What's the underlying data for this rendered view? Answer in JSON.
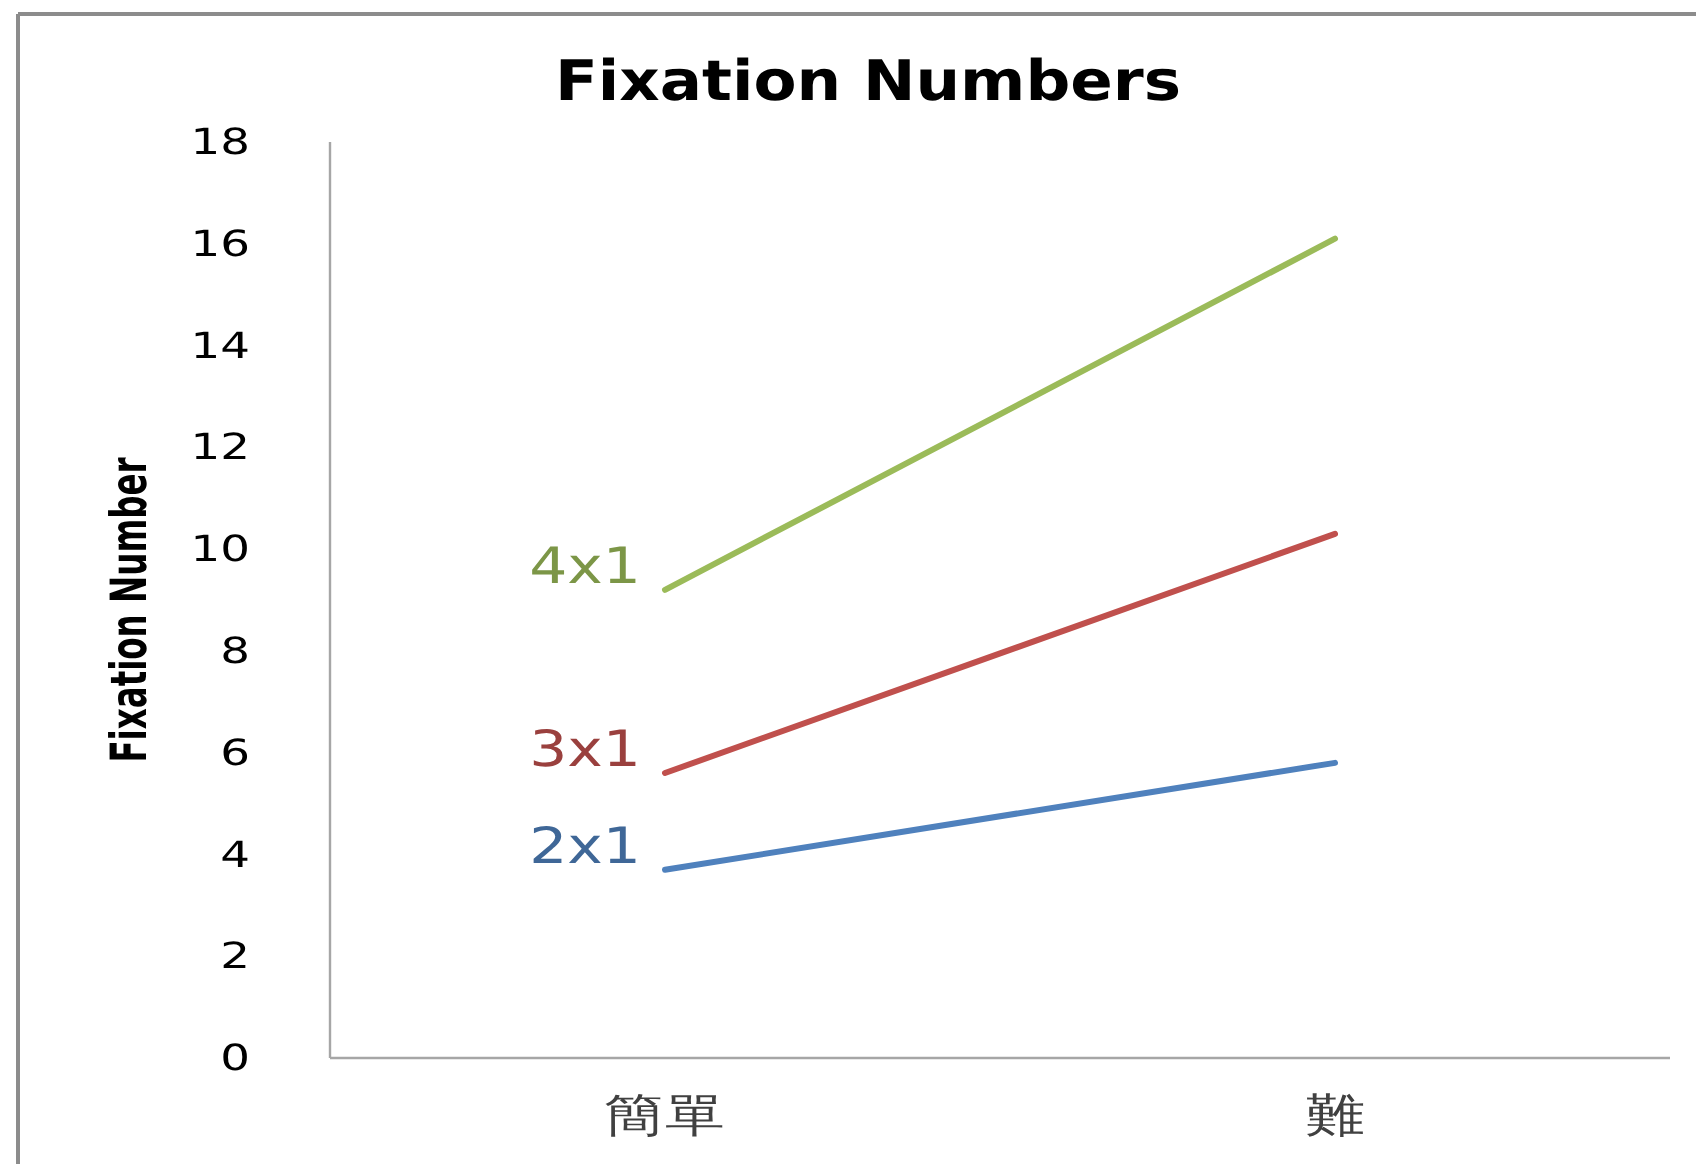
{
  "chart_data": {
    "type": "line",
    "title": "Fixation Numbers",
    "ylabel": "Fixation Number",
    "categories": [
      "簡單",
      "難"
    ],
    "series": [
      {
        "name": "2x1",
        "color": "#4f81bd",
        "values": [
          3.7,
          5.8
        ]
      },
      {
        "name": "3x1",
        "color": "#c0504d",
        "values": [
          5.6,
          10.3
        ]
      },
      {
        "name": "4x1",
        "color": "#9bbb59",
        "values": [
          9.2,
          16.1
        ]
      }
    ],
    "ylim": [
      0,
      18
    ],
    "yticks": [
      0,
      2,
      4,
      6,
      8,
      10,
      12,
      14,
      16,
      18
    ],
    "legend": false,
    "grid": false,
    "marker": "none",
    "line_style": "solid"
  }
}
